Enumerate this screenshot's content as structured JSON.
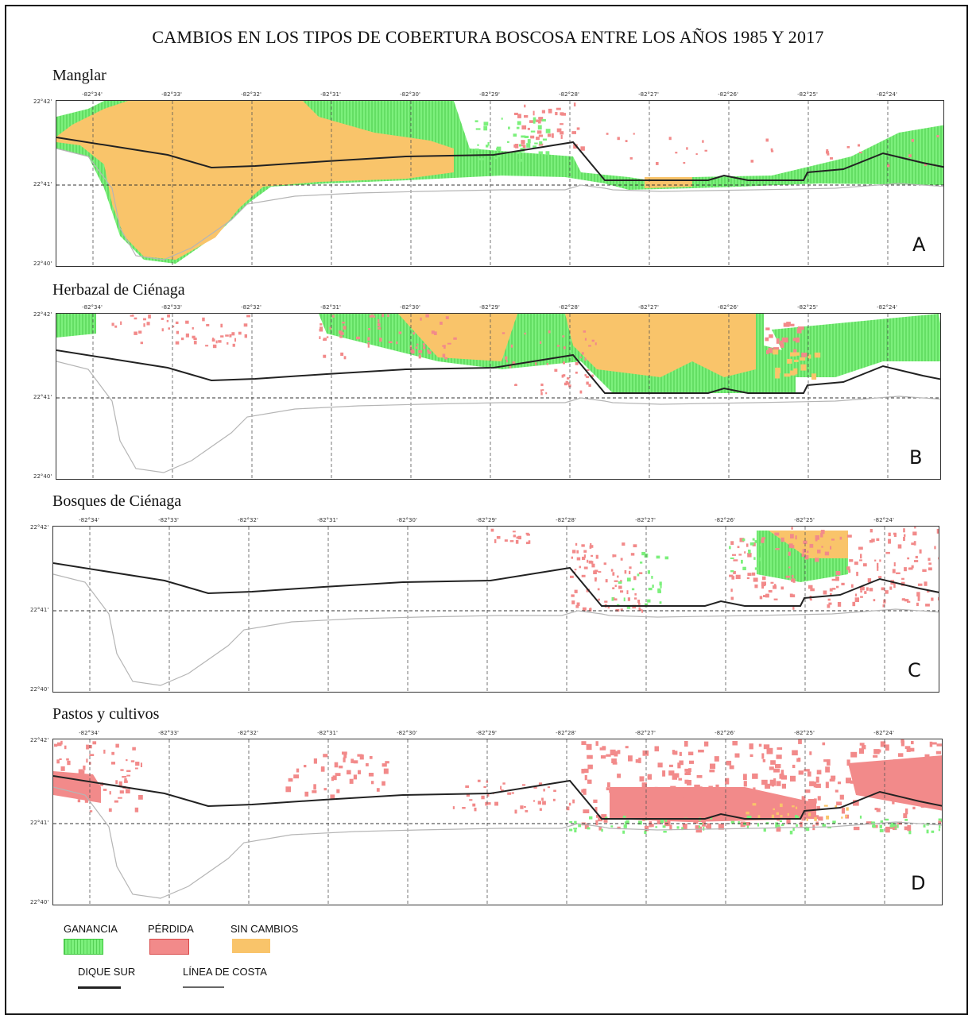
{
  "title": "CAMBIOS EN LOS TIPOS DE COBERTURA BOSCOSA ENTRE LOS AÑOS 1985 Y 2017",
  "longitude_ticks": [
    "-82°34'",
    "-82°33'",
    "-82°32'",
    "-82°31'",
    "-82°30'",
    "-82°29'",
    "-82°28'",
    "-82°27'",
    "-82°26'",
    "-82°25'",
    "-82°24'"
  ],
  "latitude_ticks": [
    "22°42'",
    "22°41'",
    "22°40'"
  ],
  "panels": [
    {
      "title": "Manglar",
      "letter": "A"
    },
    {
      "title": "Herbazal de Ciénaga",
      "letter": "B"
    },
    {
      "title": "Bosques de Ciénaga",
      "letter": "C"
    },
    {
      "title": "Pastos y cultivos",
      "letter": "D"
    }
  ],
  "legend": {
    "gain": {
      "label": "GANANCIA",
      "color": "#7cf07c"
    },
    "loss": {
      "label": "PÉRDIDA",
      "color": "#f28a8a"
    },
    "nochange": {
      "label": "SIN CAMBIOS",
      "color": "#f9c46a"
    },
    "dike": {
      "label": "DIQUE SUR",
      "color": "#222222"
    },
    "coast": {
      "label": "LÍNEA DE COSTA",
      "color": "#9a9a9a"
    }
  }
}
